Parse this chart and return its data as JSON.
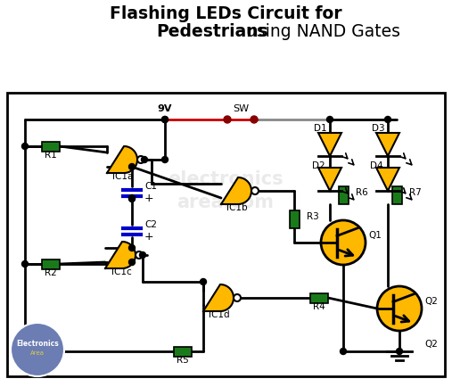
{
  "background_color": "#ffffff",
  "border_color": "#000000",
  "nand_color": "#FFB800",
  "resistor_color": "#1a7a1a",
  "capacitor_color": "#0000cc",
  "led_color": "#FFB800",
  "transistor_color": "#FFB800",
  "wire_color": "#000000",
  "supply_wire_color_red": "#cc0000",
  "supply_wire_color_gray": "#888888",
  "watermark_color": "#dddddd",
  "logo_bg": "#6b7db3",
  "title_line1": "Flashing LEDs Circuit for",
  "title_line2": "Pedestrians",
  "title_line3": " using NAND Gates"
}
